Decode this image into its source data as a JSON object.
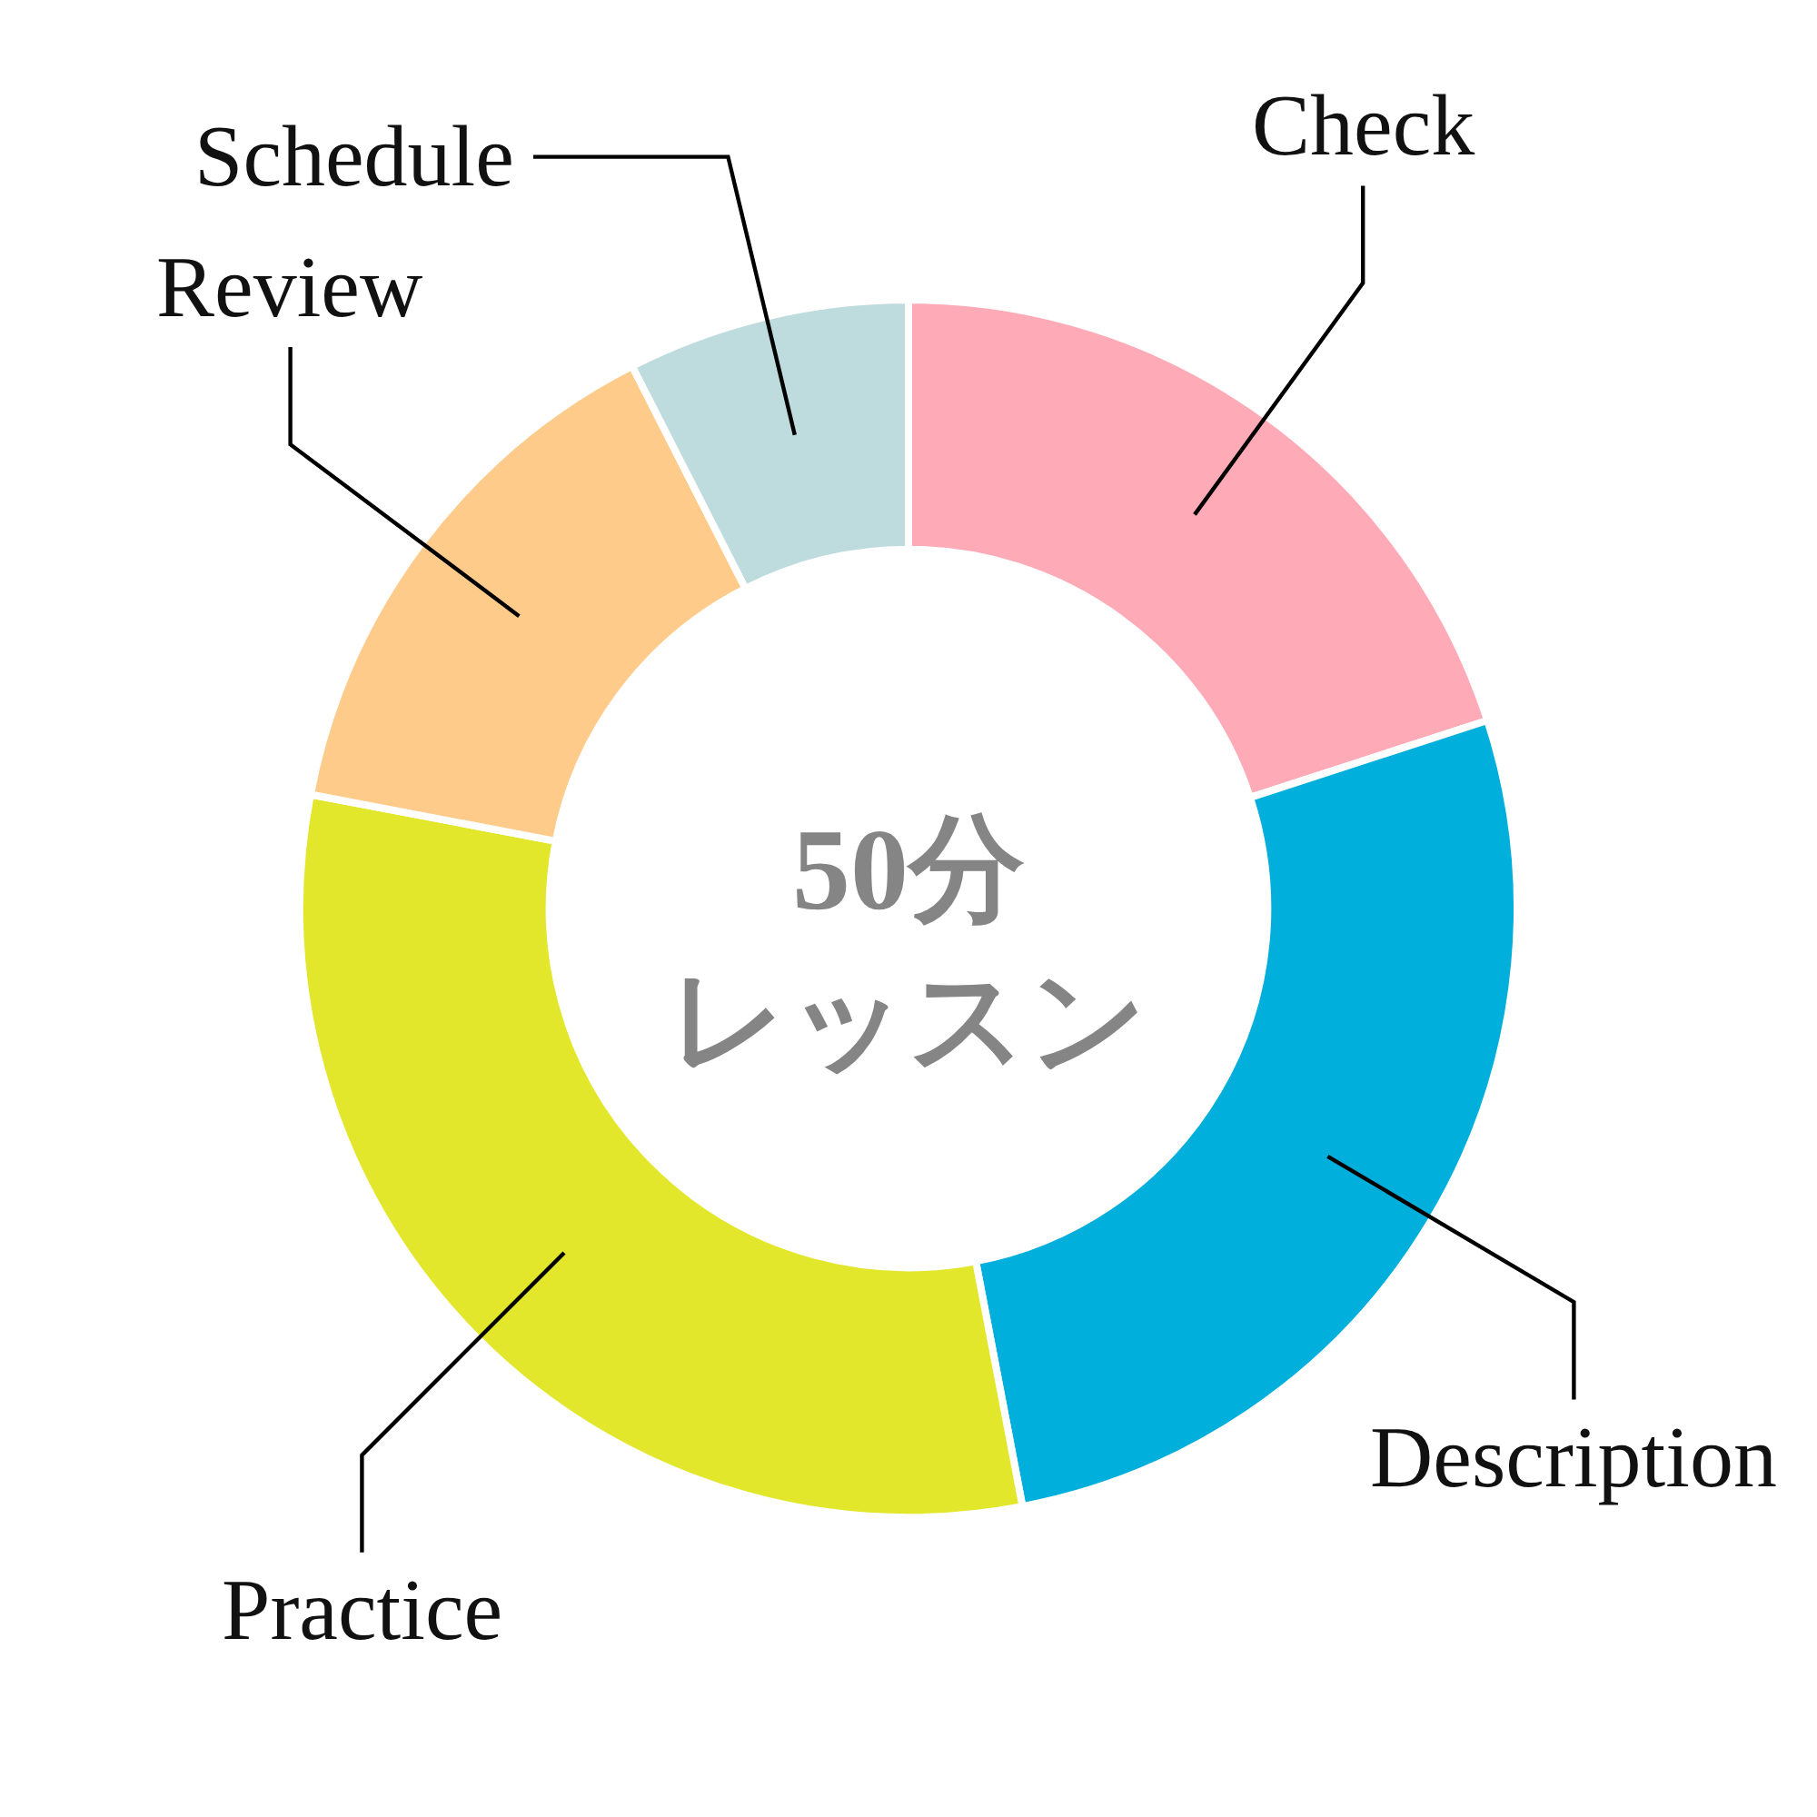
{
  "chart_data": {
    "type": "donut",
    "title": "50分レッスン",
    "categories": [
      "Check",
      "Description",
      "Practice",
      "Review",
      "Schedule"
    ],
    "values": [
      20,
      27,
      31,
      14.5,
      7.5
    ],
    "colors": [
      "#ffabb7",
      "#00afdb",
      "#e3e72b",
      "#fecb8b",
      "#bedbde"
    ]
  }
}
